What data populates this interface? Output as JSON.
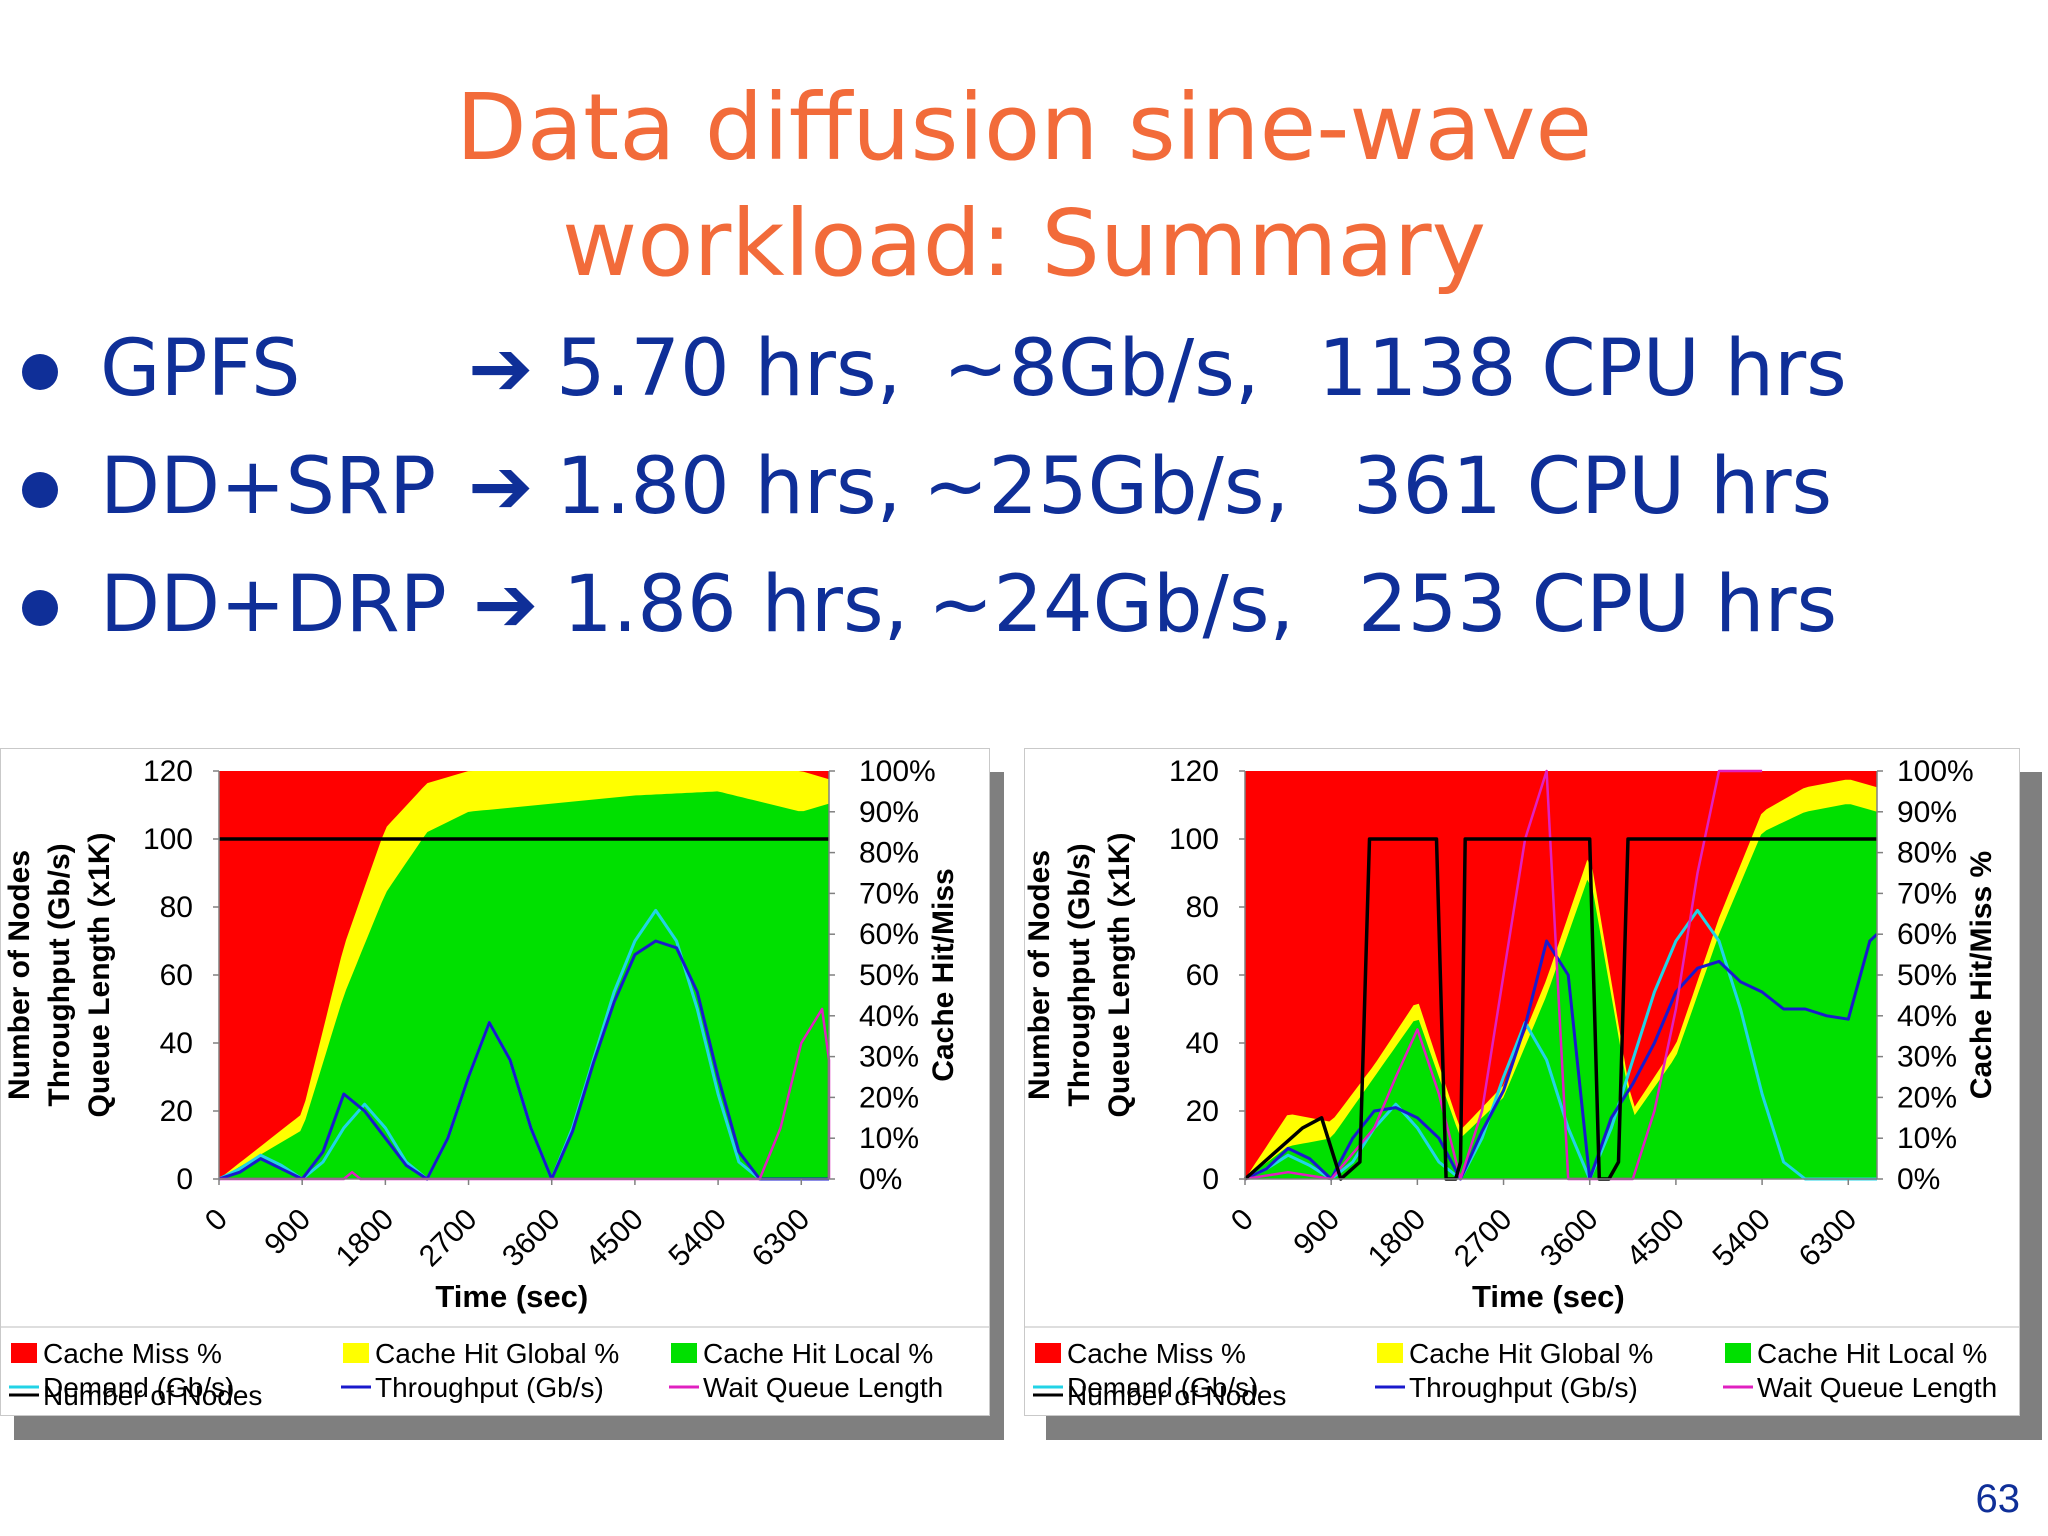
{
  "slide": {
    "title_line1": "Data diffusion sine-wave",
    "title_line2": "workload: Summary",
    "page_number": "63"
  },
  "bullets": [
    {
      "label": "GPFS",
      "arrow": "➔",
      "duration": "5.70 hrs,",
      "throughput": "~8Gb/s,",
      "cpu": "1138 CPU hrs"
    },
    {
      "label": "DD+SRP",
      "arrow": "➔",
      "duration": "1.80 hrs,",
      "throughput": "~25Gb/s,",
      "cpu": "361 CPU hrs"
    },
    {
      "label": "DD+DRP",
      "arrow": "➔",
      "duration": "1.86 hrs,",
      "throughput": "~24Gb/s,",
      "cpu": "253 CPU hrs"
    }
  ],
  "chart_data": [
    {
      "type": "area",
      "xlabel": "Time (sec)",
      "ylabel_left_lines": [
        "Number of Nodes",
        "Throughput (Gb/s)",
        "Queue Length (x1K)"
      ],
      "ylabel_right": "Cache Hit/Miss",
      "x_ticks": [
        0,
        900,
        1800,
        2700,
        3600,
        4500,
        5400,
        6300
      ],
      "xlim": [
        0,
        6600
      ],
      "y_left_ticks": [
        0,
        20,
        40,
        60,
        80,
        100,
        120
      ],
      "ylim_left": [
        0,
        120
      ],
      "y_right_ticks": [
        "0%",
        "10%",
        "20%",
        "30%",
        "40%",
        "50%",
        "60%",
        "70%",
        "80%",
        "90%",
        "100%"
      ],
      "legend": [
        "Cache Miss %",
        "Cache Hit Global %",
        "Cache Hit Local %",
        "Demand (Gb/s)",
        "Throughput (Gb/s)",
        "Wait Queue Length",
        "Number of Nodes"
      ],
      "legend_position": "bottom",
      "colors": {
        "miss": "#ff0000",
        "global": "#ffff00",
        "local": "#00e000",
        "demand": "#22d3e6",
        "throughput": "#1a1acc",
        "queue": "#e020c0",
        "nodes": "#000000"
      },
      "series": [
        {
          "name": "Cache Hit Local %",
          "x": [
            0,
            900,
            1350,
            1800,
            2250,
            2700,
            3600,
            4500,
            5400,
            6300,
            6600
          ],
          "values": [
            0,
            12,
            45,
            70,
            85,
            90,
            92,
            94,
            95,
            90,
            92
          ]
        },
        {
          "name": "Cache Hit Global %",
          "x": [
            0,
            900,
            1350,
            1800,
            2250,
            2700,
            3600,
            4500,
            5400,
            6300,
            6600
          ],
          "values": [
            0,
            4,
            12,
            16,
            12,
            10,
            8,
            6,
            5,
            10,
            6
          ]
        },
        {
          "name": "Demand (Gb/s)",
          "x": [
            0,
            225,
            450,
            675,
            900,
            1125,
            1350,
            1575,
            1800,
            2025,
            2250,
            2475,
            2700,
            2925,
            3150,
            3375,
            3600,
            3825,
            4050,
            4275,
            4500,
            4725,
            4950,
            5175,
            5400,
            5625,
            5850,
            6075,
            6300,
            6525,
            6600
          ],
          "values": [
            0,
            3,
            7,
            4,
            0,
            5,
            15,
            22,
            15,
            5,
            0,
            12,
            30,
            46,
            35,
            15,
            0,
            15,
            35,
            55,
            70,
            79,
            70,
            50,
            25,
            5,
            0,
            0,
            0,
            0,
            0
          ]
        },
        {
          "name": "Throughput (Gb/s)",
          "x": [
            0,
            225,
            450,
            675,
            900,
            1125,
            1350,
            1575,
            1800,
            2025,
            2250,
            2475,
            2700,
            2925,
            3150,
            3375,
            3600,
            3825,
            4050,
            4275,
            4500,
            4725,
            4950,
            5175,
            5400,
            5625,
            5850,
            6075,
            6300,
            6525,
            6600
          ],
          "values": [
            0,
            2,
            6,
            3,
            0,
            8,
            25,
            20,
            12,
            4,
            0,
            12,
            30,
            46,
            35,
            15,
            0,
            14,
            34,
            52,
            66,
            70,
            68,
            55,
            30,
            8,
            0,
            0,
            0,
            0,
            0
          ]
        },
        {
          "name": "Wait Queue Length",
          "x": [
            0,
            1350,
            1440,
            1530,
            5850,
            6075,
            6300,
            6525,
            6750,
            6975
          ],
          "values": [
            0,
            0,
            2,
            0,
            0,
            15,
            40,
            50,
            35,
            0
          ]
        },
        {
          "name": "Number of Nodes",
          "x": [
            0,
            6600
          ],
          "values": [
            100,
            100
          ]
        }
      ]
    },
    {
      "type": "area",
      "xlabel": "Time (sec)",
      "ylabel_left_lines": [
        "Number of Nodes",
        "Throughput (Gb/s)",
        "Queue Length (x1K)"
      ],
      "ylabel_right": "Cache Hit/Miss %",
      "x_ticks": [
        0,
        900,
        1800,
        2700,
        3600,
        4500,
        5400,
        6300
      ],
      "xlim": [
        0,
        6600
      ],
      "y_left_ticks": [
        0,
        20,
        40,
        60,
        80,
        100,
        120
      ],
      "ylim_left": [
        0,
        120
      ],
      "y_right_ticks": [
        "0%",
        "10%",
        "20%",
        "30%",
        "40%",
        "50%",
        "60%",
        "70%",
        "80%",
        "90%",
        "100%"
      ],
      "legend": [
        "Cache Miss %",
        "Cache Hit Global %",
        "Cache Hit Local %",
        "Demand (Gb/s)",
        "Throughput (Gb/s)",
        "Wait Queue Length",
        "Number of Nodes"
      ],
      "legend_position": "bottom",
      "colors": {
        "miss": "#ff0000",
        "global": "#ffff00",
        "local": "#00e000",
        "demand": "#22d3e6",
        "throughput": "#1a1acc",
        "queue": "#e020c0",
        "nodes": "#000000"
      },
      "series": [
        {
          "name": "Cache Hit Local %",
          "x": [
            0,
            450,
            900,
            1350,
            1800,
            2250,
            2700,
            3150,
            3600,
            4050,
            4500,
            4950,
            5400,
            5850,
            6300,
            6600
          ],
          "values": [
            0,
            8,
            10,
            25,
            40,
            10,
            20,
            45,
            75,
            15,
            30,
            60,
            85,
            90,
            92,
            90
          ]
        },
        {
          "name": "Cache Hit Global %",
          "x": [
            0,
            450,
            900,
            1350,
            1800,
            2250,
            2700,
            3150,
            3600,
            4050,
            4500,
            4950,
            5400,
            5850,
            6300,
            6600
          ],
          "values": [
            0,
            8,
            4,
            3,
            4,
            2,
            3,
            4,
            5,
            2,
            3,
            4,
            5,
            6,
            6,
            6
          ]
        },
        {
          "name": "Demand (Gb/s)",
          "x": [
            0,
            225,
            450,
            675,
            900,
            1125,
            1350,
            1575,
            1800,
            2025,
            2250,
            2475,
            2700,
            2925,
            3150,
            3375,
            3600,
            3825,
            4050,
            4275,
            4500,
            4725,
            4950,
            5175,
            5400,
            5625,
            5850,
            6075,
            6300,
            6525,
            6600
          ],
          "values": [
            0,
            3,
            7,
            4,
            0,
            5,
            15,
            22,
            15,
            5,
            0,
            12,
            30,
            46,
            35,
            15,
            0,
            15,
            35,
            55,
            70,
            79,
            70,
            50,
            25,
            5,
            0,
            0,
            0,
            0,
            0
          ]
        },
        {
          "name": "Throughput (Gb/s)",
          "x": [
            0,
            225,
            450,
            675,
            900,
            1125,
            1350,
            1575,
            1800,
            2025,
            2250,
            2475,
            2700,
            2925,
            3150,
            3375,
            3600,
            3825,
            4050,
            4275,
            4500,
            4725,
            4950,
            5175,
            5400,
            5625,
            5850,
            6075,
            6300,
            6525,
            6600
          ],
          "values": [
            0,
            3,
            9,
            6,
            0,
            12,
            20,
            21,
            18,
            12,
            0,
            14,
            26,
            45,
            70,
            60,
            0,
            18,
            28,
            40,
            55,
            62,
            64,
            58,
            55,
            50,
            50,
            48,
            47,
            70,
            72
          ]
        },
        {
          "name": "Wait Queue Length",
          "x": [
            0,
            450,
            900,
            1350,
            1575,
            1800,
            2025,
            2250,
            2475,
            2700,
            2925,
            3150,
            3375,
            3600,
            3825,
            4050,
            4275,
            4500,
            4725,
            4950,
            5175,
            5400
          ],
          "values": [
            0,
            2,
            0,
            15,
            30,
            44,
            25,
            0,
            20,
            60,
            100,
            120,
            0,
            0,
            0,
            0,
            20,
            50,
            90,
            120,
            120,
            120
          ]
        },
        {
          "name": "Number of Nodes",
          "x": [
            0,
            600,
            800,
            1000,
            1200,
            1300,
            1400,
            2000,
            2100,
            2200,
            2250,
            2300,
            2450,
            3600,
            3700,
            3800,
            3900,
            4000,
            4100,
            4200,
            6600
          ],
          "values": [
            0,
            15,
            18,
            0,
            5,
            100,
            100,
            100,
            0,
            0,
            5,
            100,
            100,
            100,
            0,
            0,
            5,
            100,
            100,
            100,
            100
          ]
        }
      ]
    }
  ]
}
